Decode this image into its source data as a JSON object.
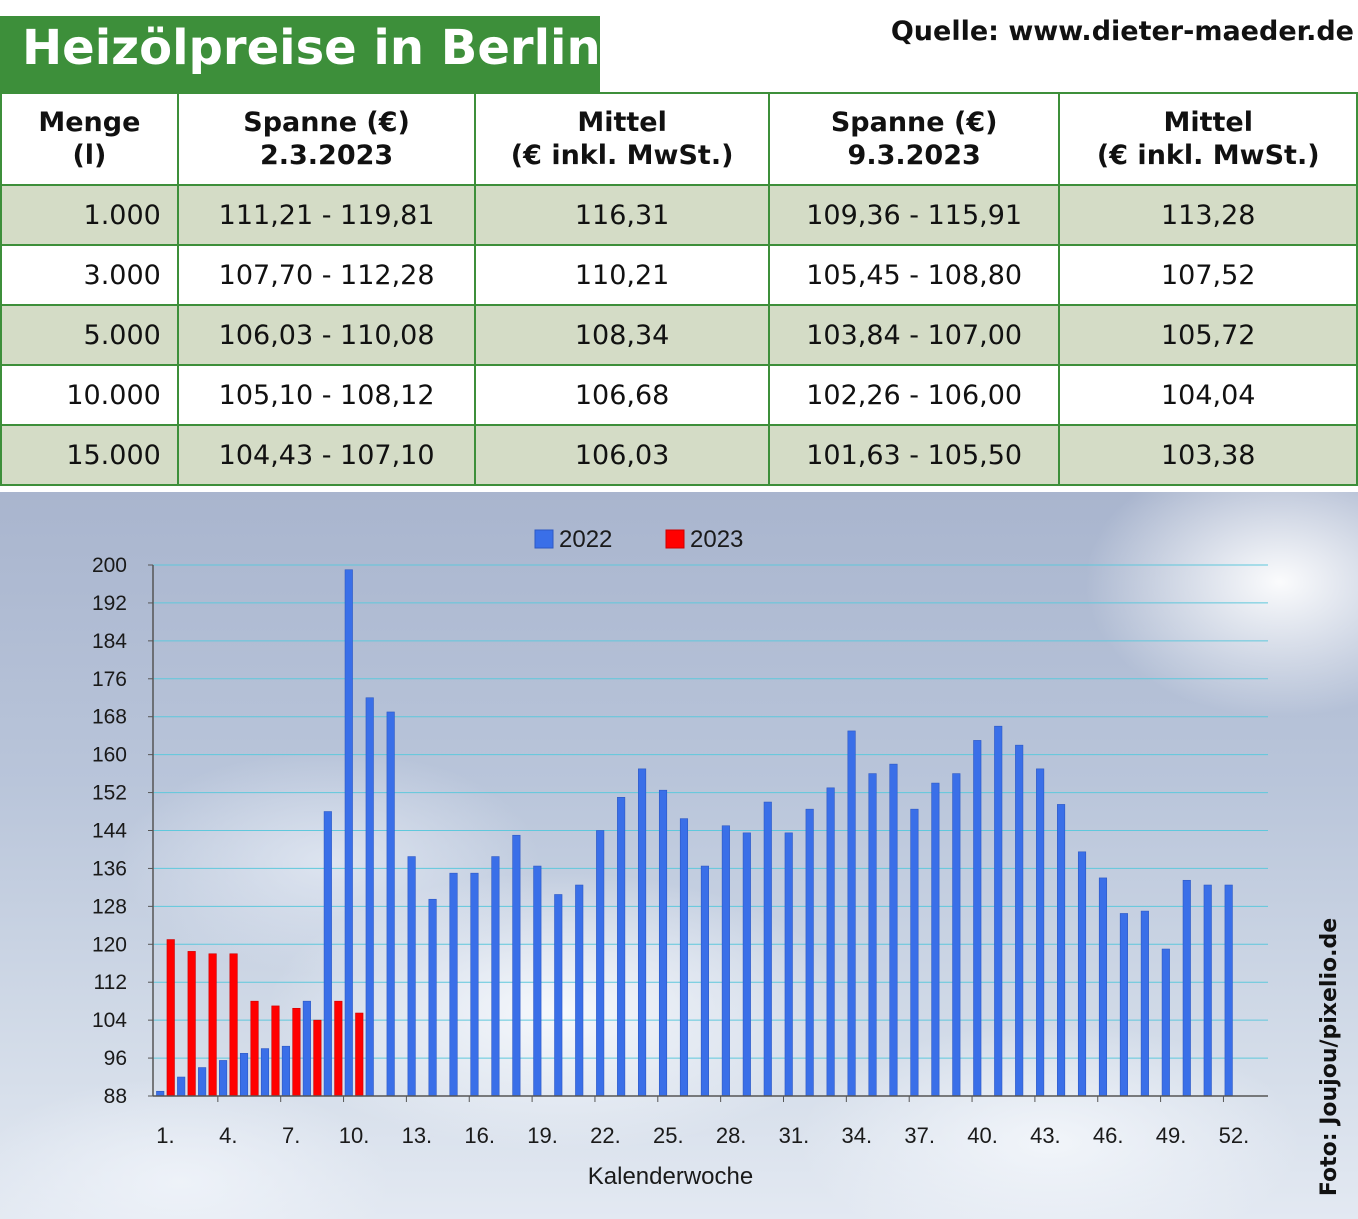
{
  "header": {
    "title": "Heizölpreise in Berlin",
    "source": "Quelle: www.dieter-maeder.de"
  },
  "table": {
    "columns": [
      [
        "Menge",
        "(l)"
      ],
      [
        "Spanne (€)",
        "2.3.2023"
      ],
      [
        "Mittel",
        "(€ inkl. MwSt.)"
      ],
      [
        "Spanne (€)",
        "9.3.2023"
      ],
      [
        "Mittel",
        "(€ inkl. MwSt.)"
      ]
    ],
    "rows": [
      [
        "1.000",
        "111,21 - 119,81",
        "116,31",
        "109,36 - 115,91",
        "113,28"
      ],
      [
        "3.000",
        "107,70 - 112,28",
        "110,21",
        "105,45 - 108,80",
        "107,52"
      ],
      [
        "5.000",
        "106,03 - 110,08",
        "108,34",
        "103,84 - 107,00",
        "105,72"
      ],
      [
        "10.000",
        "105,10 - 108,12",
        "106,68",
        "102,26 - 106,00",
        "104,04"
      ],
      [
        "15.000",
        "104,43 - 107,10",
        "106,03",
        "101,63 - 105,50",
        "103,38"
      ]
    ]
  },
  "colors": {
    "brand_green": "#3d8f3a",
    "row_shade": "#d4dcc6",
    "series_2022": "#3a6fe8",
    "series_2023": "#ff0000"
  },
  "credit": "Foto: Joujou/pixelio.de",
  "chart_data": {
    "type": "bar",
    "xlabel": "Kalenderwoche",
    "ylabel": "",
    "ylim": [
      88,
      200
    ],
    "y_ticks": [
      88,
      96,
      104,
      112,
      120,
      128,
      136,
      144,
      152,
      160,
      168,
      176,
      184,
      192,
      200
    ],
    "x_tick_labels": [
      "1.",
      "4.",
      "7.",
      "10.",
      "13.",
      "16.",
      "19.",
      "22.",
      "25.",
      "28.",
      "31.",
      "34.",
      "37.",
      "40.",
      "43.",
      "46.",
      "49.",
      "52."
    ],
    "x_tick_weeks": [
      1,
      4,
      7,
      10,
      13,
      16,
      19,
      22,
      25,
      28,
      31,
      34,
      37,
      40,
      43,
      46,
      49,
      52
    ],
    "grid": true,
    "legend": "top",
    "series": [
      {
        "name": "2022",
        "weeks": [
          1,
          2,
          3,
          4,
          5,
          6,
          7,
          8,
          9,
          10,
          11,
          12,
          13,
          14,
          15,
          16,
          17,
          18,
          19,
          20,
          21,
          22,
          23,
          24,
          25,
          26,
          27,
          28,
          29,
          30,
          31,
          32,
          33,
          34,
          35,
          36,
          37,
          38,
          39,
          40,
          41,
          42,
          43,
          44,
          45,
          46,
          47,
          48,
          49,
          50,
          51,
          52
        ],
        "values": [
          89,
          92,
          94,
          95.5,
          97,
          98,
          98.5,
          108,
          148,
          199,
          172,
          169,
          138.5,
          129.5,
          135,
          135,
          138.5,
          143,
          136.5,
          130.5,
          132.5,
          144,
          151,
          157,
          152.5,
          146.5,
          136.5,
          145,
          143.5,
          150,
          143.5,
          148.5,
          153,
          165,
          156,
          158,
          148.5,
          154,
          156,
          163,
          166,
          162,
          157,
          149.5,
          139.5,
          134,
          126.5,
          127,
          119,
          133.5,
          132.5,
          132.5
        ]
      },
      {
        "name": "2023",
        "weeks": [
          1,
          2,
          3,
          4,
          5,
          6,
          7,
          8,
          9,
          10
        ],
        "values": [
          121,
          118.5,
          118,
          118,
          108,
          107,
          106.5,
          104,
          108,
          105.5
        ]
      }
    ]
  }
}
